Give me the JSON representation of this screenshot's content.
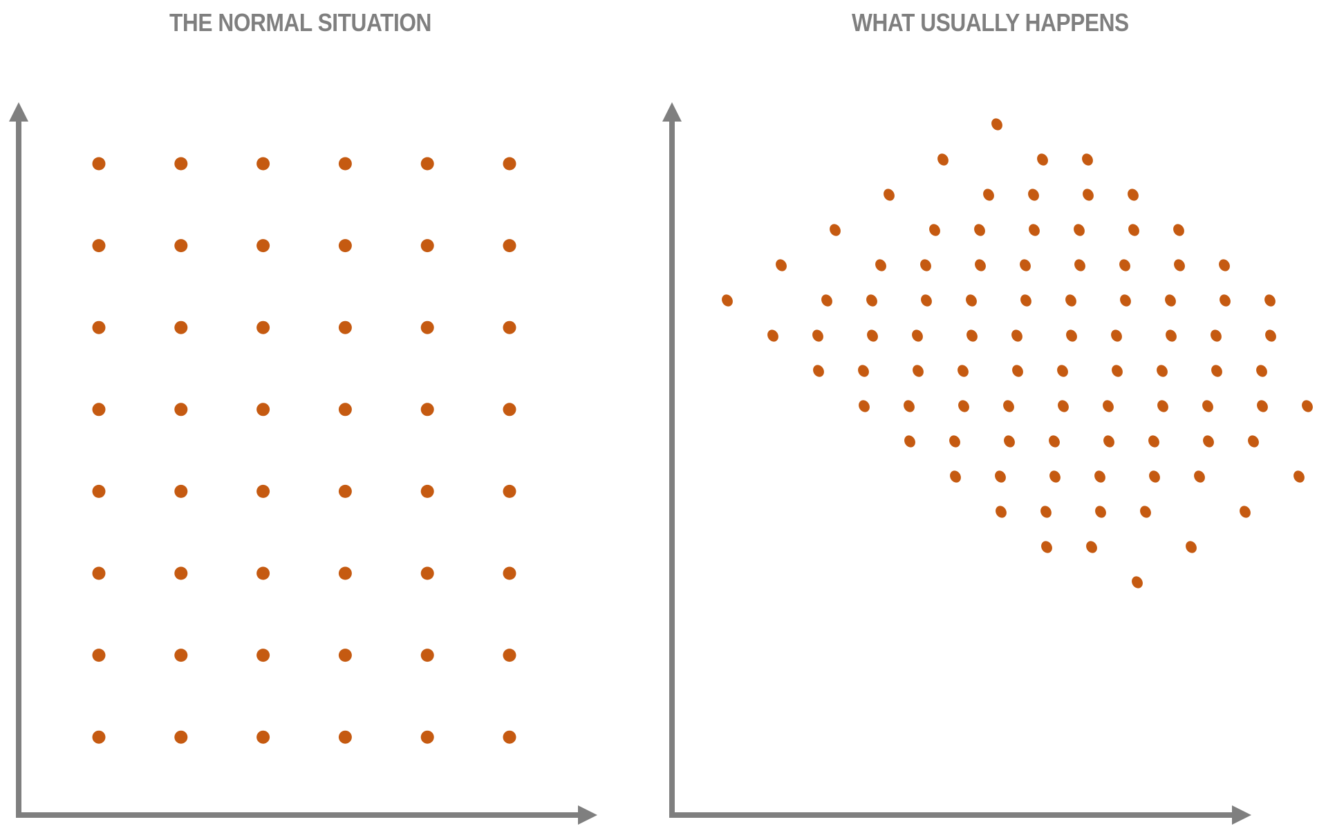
{
  "panels": {
    "left": {
      "title": "THE NORMAL SITUATION"
    },
    "right": {
      "title": "WHAT USUALLY HAPPENS"
    }
  },
  "colors": {
    "axis": "#7f7f7f",
    "dot": "#c55a11",
    "title": "#7f7f7f",
    "background": "#ffffff"
  },
  "diagram": {
    "left_grid": {
      "columns": 6,
      "rows": 8,
      "arrangement": "regular square grid"
    },
    "right_grid": {
      "columns": 6,
      "rows": 8,
      "arrangement": "same grid rotated and stretched",
      "rotation_degrees": 31
    }
  }
}
